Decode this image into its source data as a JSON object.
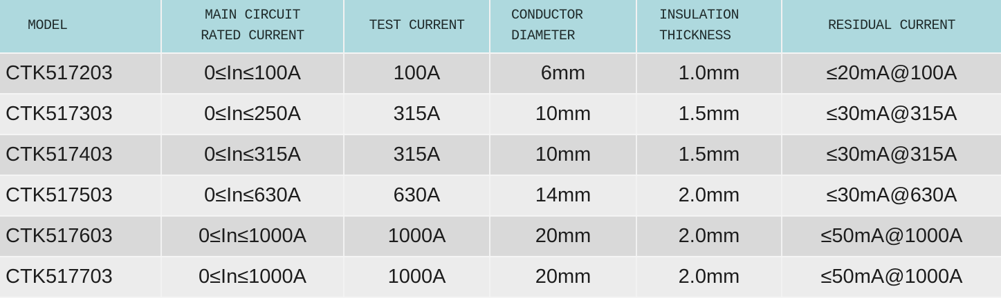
{
  "table": {
    "headers": [
      [
        "MODEL"
      ],
      [
        "MAIN CIRCUIT",
        "RATED CURRENT"
      ],
      [
        "TEST CURRENT"
      ],
      [
        "CONDUCTOR",
        "DIAMETER"
      ],
      [
        "INSULATION",
        "THICKNESS"
      ],
      [
        "RESIDUAL CURRENT"
      ]
    ],
    "rows": [
      [
        "CTK517203",
        "0≤In≤100A",
        "100A",
        "6mm",
        "1.0mm",
        "≤20mA@100A"
      ],
      [
        "CTK517303",
        "0≤In≤250A",
        "315A",
        "10mm",
        "1.5mm",
        "≤30mA@315A"
      ],
      [
        "CTK517403",
        "0≤In≤315A",
        "315A",
        "10mm",
        "1.5mm",
        "≤30mA@315A"
      ],
      [
        "CTK517503",
        "0≤In≤630A",
        "630A",
        "14mm",
        "2.0mm",
        "≤30mA@630A"
      ],
      [
        "CTK517603",
        "0≤In≤1000A",
        "1000A",
        "20mm",
        "2.0mm",
        "≤50mA@1000A"
      ],
      [
        "CTK517703",
        "0≤In≤1000A",
        "1000A",
        "20mm",
        "2.0mm",
        "≤50mA@1000A"
      ]
    ]
  },
  "colors": {
    "header_bg": "#aed9de",
    "row_odd": "#d9d9d9",
    "row_even": "#ececec"
  }
}
